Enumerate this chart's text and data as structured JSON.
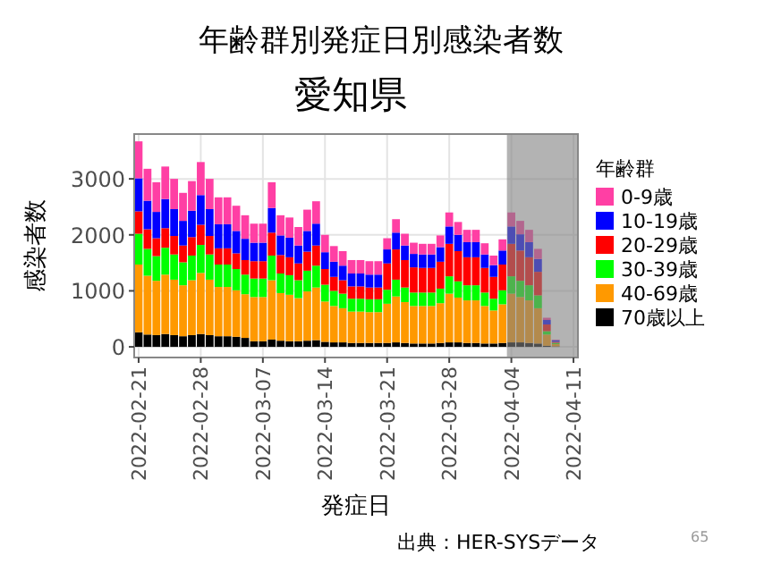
{
  "chart_data": {
    "type": "bar",
    "stacked": true,
    "title": "年齢群別発症日別感染者数",
    "subtitle": "愛知県",
    "xlabel": "発症日",
    "ylabel": "感染者数",
    "legend_title": "年齢群",
    "legend": "right",
    "grid": true,
    "x": [
      "2022-02-21",
      "2022-02-22",
      "2022-02-23",
      "2022-02-24",
      "2022-02-25",
      "2022-02-26",
      "2022-02-27",
      "2022-02-28",
      "2022-03-01",
      "2022-03-02",
      "2022-03-03",
      "2022-03-04",
      "2022-03-05",
      "2022-03-06",
      "2022-03-07",
      "2022-03-08",
      "2022-03-09",
      "2022-03-10",
      "2022-03-11",
      "2022-03-12",
      "2022-03-13",
      "2022-03-14",
      "2022-03-15",
      "2022-03-16",
      "2022-03-17",
      "2022-03-18",
      "2022-03-19",
      "2022-03-20",
      "2022-03-21",
      "2022-03-22",
      "2022-03-23",
      "2022-03-24",
      "2022-03-25",
      "2022-03-26",
      "2022-03-27",
      "2022-03-28",
      "2022-03-29",
      "2022-03-30",
      "2022-03-31",
      "2022-04-01",
      "2022-04-02",
      "2022-04-03",
      "2022-04-04",
      "2022-04-05",
      "2022-04-06",
      "2022-04-07",
      "2022-04-08",
      "2022-04-09"
    ],
    "xlim": [
      "2022-02-20T12:00",
      "2022-04-11T12:00"
    ],
    "xticks": [
      "2022-02-21",
      "2022-02-28",
      "2022-03-07",
      "2022-03-14",
      "2022-03-21",
      "2022-03-28",
      "2022-04-04",
      "2022-04-11"
    ],
    "ylim": [
      -190,
      3800
    ],
    "yticks": [
      0,
      1000,
      2000,
      3000
    ],
    "series": [
      {
        "name": "70歳以上",
        "color": "#000000",
        "values": [
          260,
          220,
          210,
          230,
          210,
          190,
          210,
          230,
          210,
          190,
          190,
          180,
          160,
          100,
          100,
          130,
          110,
          100,
          100,
          110,
          120,
          90,
          80,
          80,
          70,
          70,
          70,
          70,
          70,
          80,
          70,
          60,
          60,
          60,
          70,
          80,
          80,
          70,
          70,
          60,
          60,
          70,
          80,
          80,
          70,
          60,
          20,
          10
        ]
      },
      {
        "name": "40-69歳",
        "color": "#ff9900",
        "values": [
          1210,
          1050,
          970,
          1060,
          990,
          910,
          980,
          1090,
          990,
          880,
          880,
          830,
          780,
          790,
          790,
          1060,
          850,
          830,
          770,
          880,
          940,
          720,
          650,
          610,
          560,
          560,
          550,
          550,
          700,
          820,
          730,
          670,
          670,
          670,
          710,
          870,
          800,
          760,
          760,
          670,
          590,
          690,
          870,
          810,
          760,
          630,
          200,
          40
        ]
      },
      {
        "name": "30-39歳",
        "color": "#00ff00",
        "values": [
          550,
          480,
          440,
          480,
          450,
          410,
          440,
          500,
          450,
          400,
          400,
          380,
          350,
          330,
          330,
          440,
          350,
          350,
          320,
          370,
          390,
          300,
          270,
          260,
          230,
          230,
          230,
          230,
          250,
          300,
          260,
          240,
          240,
          240,
          260,
          310,
          290,
          270,
          270,
          240,
          210,
          250,
          310,
          290,
          270,
          230,
          60,
          20
        ]
      },
      {
        "name": "20-29歳",
        "color": "#ff0000",
        "values": [
          400,
          350,
          320,
          350,
          330,
          300,
          330,
          360,
          330,
          290,
          290,
          280,
          260,
          310,
          310,
          410,
          330,
          320,
          300,
          340,
          360,
          280,
          250,
          240,
          220,
          220,
          210,
          210,
          470,
          540,
          490,
          450,
          440,
          440,
          480,
          580,
          540,
          500,
          500,
          440,
          390,
          460,
          580,
          540,
          500,
          420,
          120,
          20
        ]
      },
      {
        "name": "10-19歳",
        "color": "#0000ff",
        "values": [
          590,
          510,
          470,
          520,
          480,
          440,
          470,
          530,
          480,
          430,
          430,
          400,
          380,
          330,
          330,
          440,
          350,
          350,
          320,
          370,
          390,
          300,
          270,
          260,
          230,
          230,
          230,
          230,
          250,
          300,
          260,
          240,
          240,
          240,
          260,
          310,
          290,
          270,
          270,
          240,
          210,
          250,
          310,
          290,
          270,
          230,
          80,
          30
        ]
      },
      {
        "name": "0-9歳",
        "color": "#ff3fa4",
        "values": [
          660,
          570,
          530,
          580,
          540,
          500,
          530,
          590,
          540,
          480,
          480,
          450,
          420,
          340,
          340,
          460,
          360,
          360,
          330,
          380,
          400,
          310,
          280,
          260,
          240,
          240,
          240,
          240,
          200,
          240,
          210,
          200,
          190,
          190,
          210,
          250,
          230,
          220,
          220,
          200,
          170,
          200,
          250,
          240,
          220,
          180,
          40,
          10
        ]
      }
    ],
    "bands": [
      {
        "axis": "x",
        "from": "2022-04-03T12:00",
        "to": "2022-04-11T12:00",
        "color": "#808080"
      }
    ],
    "annotations": [
      "出典：HER-SYSデータ",
      "65"
    ]
  }
}
